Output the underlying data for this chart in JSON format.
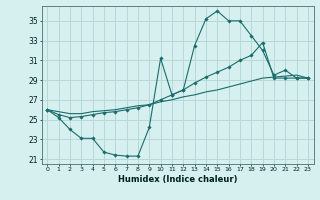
{
  "xlabel": "Humidex (Indice chaleur)",
  "bg_color": "#d6f0f0",
  "grid_color": "#b8d8d8",
  "line_color": "#1a6b6b",
  "xlim": [
    -0.5,
    23.5
  ],
  "ylim": [
    20.5,
    36.5
  ],
  "yticks": [
    21,
    23,
    25,
    27,
    29,
    31,
    33,
    35
  ],
  "xticks": [
    0,
    1,
    2,
    3,
    4,
    5,
    6,
    7,
    8,
    9,
    10,
    11,
    12,
    13,
    14,
    15,
    16,
    17,
    18,
    19,
    20,
    21,
    22,
    23
  ],
  "line1_x": [
    0,
    1,
    2,
    3,
    4,
    5,
    6,
    7,
    8,
    9,
    10,
    11,
    12,
    13,
    14,
    15,
    16,
    17,
    18,
    19,
    20,
    21,
    22,
    23
  ],
  "line1_y": [
    26.0,
    25.2,
    24.0,
    23.1,
    23.1,
    21.7,
    21.4,
    21.3,
    21.3,
    24.2,
    31.2,
    27.5,
    28.0,
    32.5,
    35.2,
    36.0,
    35.0,
    35.0,
    33.5,
    32.0,
    29.5,
    30.0,
    29.2,
    29.2
  ],
  "line2_x": [
    0,
    1,
    2,
    3,
    4,
    5,
    6,
    7,
    8,
    9,
    10,
    11,
    12,
    13,
    14,
    15,
    16,
    17,
    18,
    19,
    20,
    21,
    22,
    23
  ],
  "line2_y": [
    26.0,
    25.5,
    25.2,
    25.3,
    25.5,
    25.7,
    25.8,
    26.0,
    26.2,
    26.5,
    27.0,
    27.5,
    28.0,
    28.7,
    29.3,
    29.8,
    30.3,
    31.0,
    31.5,
    32.8,
    29.2,
    29.2,
    29.2,
    29.2
  ],
  "line3_x": [
    0,
    1,
    2,
    3,
    4,
    5,
    6,
    7,
    8,
    9,
    10,
    11,
    12,
    13,
    14,
    15,
    16,
    17,
    18,
    19,
    20,
    21,
    22,
    23
  ],
  "line3_y": [
    26.0,
    25.8,
    25.6,
    25.6,
    25.8,
    25.9,
    26.0,
    26.2,
    26.4,
    26.5,
    26.8,
    27.0,
    27.3,
    27.5,
    27.8,
    28.0,
    28.3,
    28.6,
    28.9,
    29.2,
    29.3,
    29.4,
    29.5,
    29.2
  ]
}
